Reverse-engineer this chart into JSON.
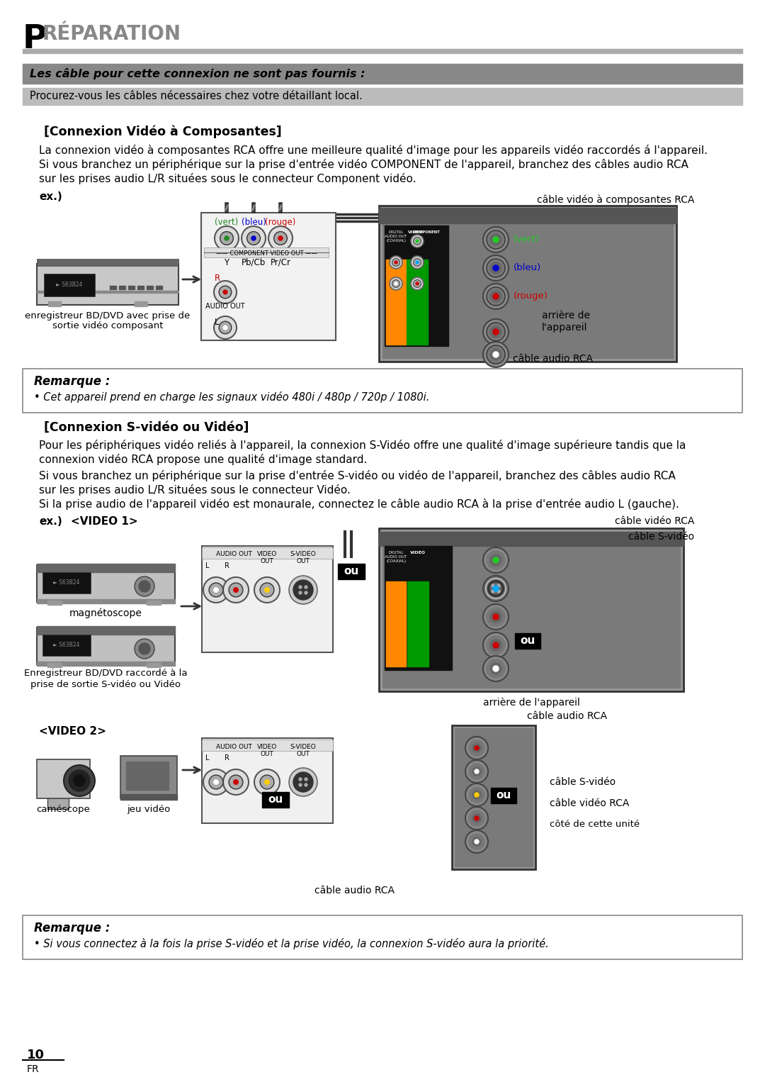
{
  "page_title_P": "P",
  "page_title_rest": "RÉPARATION",
  "warning_text": "Les câble pour cette connexion ne sont pas fournis :",
  "warning_sub_text": "Procurez-vous les câbles nécessaires chez votre détaillant local.",
  "section1_title": "[Connexion Vidéo à Composantes]",
  "section1_body1": "La connexion vidéo à composantes RCA offre une meilleure qualité d'image pour les appareils vidéo raccordés á l'appareil.",
  "section1_body2": "Si vous branchez un périphérique sur la prise d'entrée vidéo COMPONENT de l'appareil, branchez des câbles audio RCA",
  "section1_body3": "sur les prises audio L/R situées sous le connecteur Component vidéo.",
  "ex1_label": "ex.)",
  "label_vert": "(vert)",
  "label_bleu": "(bleu)",
  "label_rouge": "(rouge)",
  "label_component_out": "COMPONENT VIDEO OUT",
  "label_Y": "Y",
  "label_PbCb": "Pb/Cb",
  "label_PrCr": "Pr/Cr",
  "label_audio_out": "AUDIO OUT",
  "label_R": "R",
  "label_L": "L",
  "device1_label_1": "enregistreur BD/DVD avec prise de",
  "device1_label_2": "sortie vidéo composant",
  "cable1_label": "câble vidéo à composantes RCA",
  "arriere_label1_1": "arrière de",
  "arriere_label1_2": "l'appareil",
  "label_vert_tv": "(vert)",
  "label_bleu_tv": "(bleu)",
  "label_rouge_tv": "(rouge)",
  "cable_audio1": "câble audio RCA",
  "remarque1_title": "Remarque :",
  "remarque1_body": "• Cet appareil prend en charge les signaux vidéo 480i / 480p / 720p / 1080i.",
  "section2_title": "[Connexion S-vidéo ou Vidéo]",
  "section2_body1": "Pour les périphériques vidéo reliés à l'appareil, la connexion S-Vidéo offre une qualité d'image supérieure tandis que la",
  "section2_body2": "connexion vidéo RCA propose une qualité d'image standard.",
  "section2_body3": "Si vous branchez un périphérique sur la prise d'entrée S-vidéo ou vidéo de l'appareil, branchez des câbles audio RCA",
  "section2_body4": "sur les prises audio L/R situées sous le connecteur Vidéo.",
  "section2_body5": "Si la prise audio de l'appareil vidéo est monaurale, connectez le câble audio RCA à la prise d'entrée audio L (gauche).",
  "ex2_label": "ex.)",
  "video1_label": "<VIDEO 1>",
  "ou_label": "ou",
  "magnetoscope_label": "magnétoscope",
  "device2_label_1": "Enregistreur BD/DVD raccordé à la",
  "device2_label_2": "prise de sortie S-vidéo ou Vidéo",
  "cable_video_rca": "câble vidéo RCA",
  "cable_s_video1": "câble S-vidéo",
  "arriere_label2": "arrière de l'appareil",
  "cable_audio2": "câble audio RCA",
  "video2_label": "<VIDEO 2>",
  "camescope_label": "caméscope",
  "jeu_video_label": "jeu vidéo",
  "cable_s_video2": "câble S-vidéo",
  "cable_video_rca2": "câble vidéo RCA",
  "cable_audio3": "câble audio RCA",
  "cote_label": "côté de cette unité",
  "remarque2_title": "Remarque :",
  "remarque2_body": "• Si vous connectez à la fois la prise S-vidéo et la prise vidéo, la connexion S-vidéo aura la priorité.",
  "page_num": "10",
  "page_fr": "FR"
}
